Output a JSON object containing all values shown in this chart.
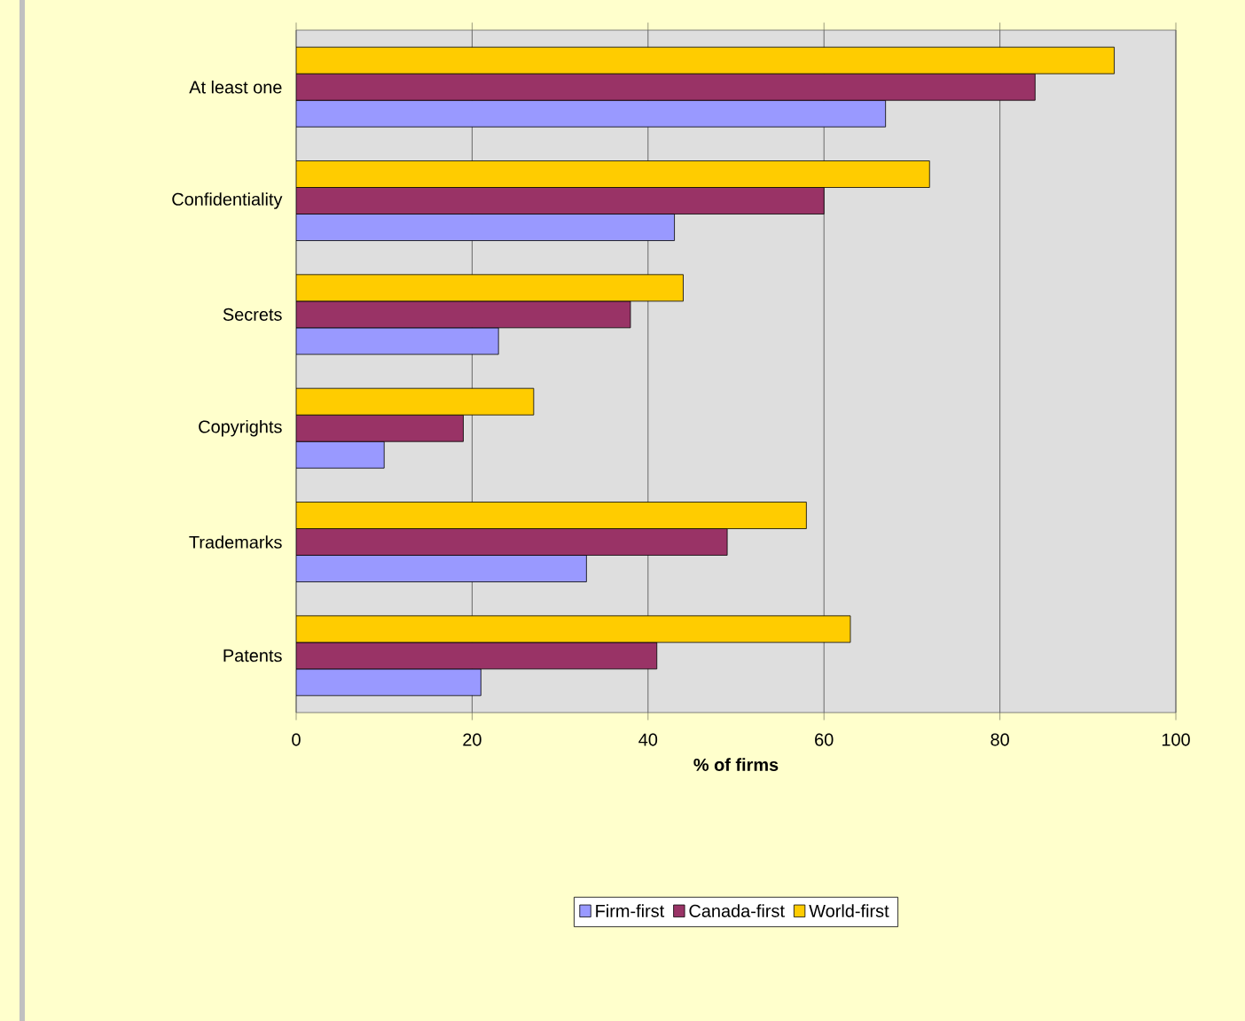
{
  "chart_data": {
    "type": "bar",
    "orientation": "horizontal",
    "categories": [
      "At least one",
      "Confidentiality",
      "Secrets",
      "Copyrights",
      "Trademarks",
      "Patents"
    ],
    "series": [
      {
        "name": "Firm-first",
        "color": "#9999ff",
        "values": [
          67,
          43,
          23,
          10,
          33,
          21
        ]
      },
      {
        "name": "Canada-first",
        "color": "#993366",
        "values": [
          84,
          60,
          38,
          19,
          49,
          41
        ]
      },
      {
        "name": "World-first",
        "color": "#ffcc00",
        "values": [
          93,
          72,
          44,
          27,
          58,
          63
        ]
      }
    ],
    "xlim": [
      0,
      100
    ],
    "xticks": [
      0,
      20,
      40,
      60,
      80,
      100
    ],
    "xlabel": "% of firms",
    "grid": "x",
    "legend": "bottom"
  }
}
